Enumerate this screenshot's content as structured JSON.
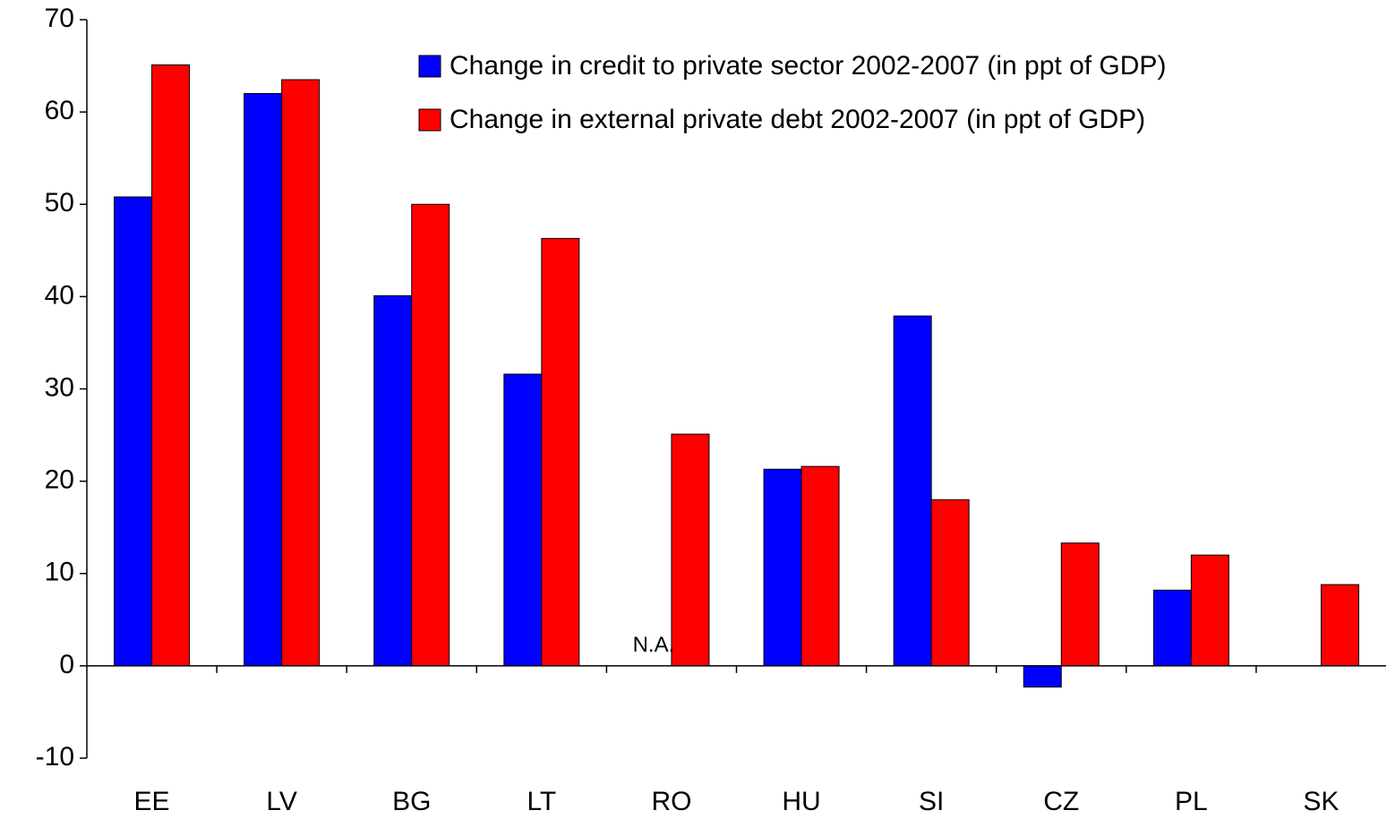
{
  "chart_data": {
    "type": "bar",
    "categories": [
      "EE",
      "LV",
      "BG",
      "LT",
      "RO",
      "HU",
      "SI",
      "CZ",
      "PL",
      "SK"
    ],
    "series": [
      {
        "name": "Change in credit to private sector 2002-2007 (in ppt of GDP)",
        "color": "#0000ff",
        "values": [
          50.8,
          62,
          40.1,
          31.6,
          null,
          21.3,
          37.9,
          -2.3,
          8.2,
          null
        ]
      },
      {
        "name": "Change in external private debt 2002-2007 (in ppt of GDP)",
        "color": "#ff0000",
        "values": [
          65.1,
          63.5,
          50,
          46.3,
          25.1,
          21.6,
          18,
          13.3,
          12,
          8.8
        ]
      }
    ],
    "annotations": [
      {
        "text": "N.A.",
        "category": "RO"
      }
    ],
    "ylim": [
      -10,
      70
    ],
    "yticks": [
      -10,
      0,
      10,
      20,
      30,
      40,
      50,
      60,
      70
    ],
    "grid": false,
    "legend": "top"
  }
}
